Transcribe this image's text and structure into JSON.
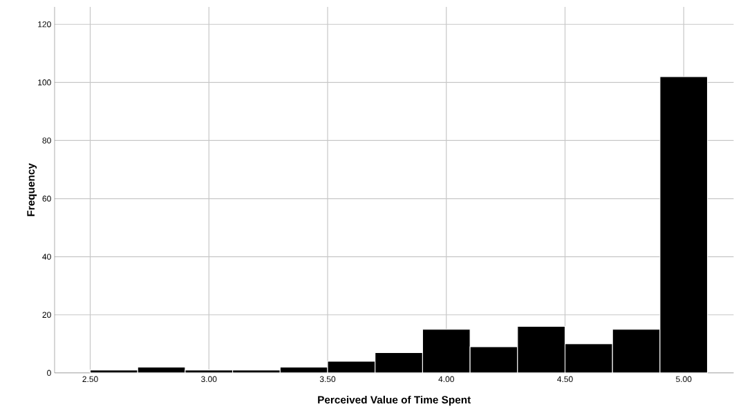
{
  "chart_data": {
    "type": "histogram",
    "xlabel": "Perceived Value of Time Spent",
    "ylabel": "Frequency",
    "bins": [
      2.5,
      2.7,
      2.9,
      3.1,
      3.3,
      3.5,
      3.7,
      3.9,
      4.1,
      4.3,
      4.5,
      4.7,
      4.9,
      5.1
    ],
    "values": [
      1,
      2,
      1,
      1,
      2,
      4,
      7,
      15,
      9,
      16,
      10,
      15,
      102
    ],
    "color": "#000000",
    "xlim": [
      2.35,
      5.21
    ],
    "ylim": [
      0,
      126
    ],
    "xticks": [
      {
        "value": 2.5,
        "label": "2.50"
      },
      {
        "value": 3.0,
        "label": "3.00"
      },
      {
        "value": 3.5,
        "label": "3.50"
      },
      {
        "value": 4.0,
        "label": "4.00"
      },
      {
        "value": 4.5,
        "label": "4.50"
      },
      {
        "value": 5.0,
        "label": "5.00"
      }
    ],
    "yticks": [
      0,
      20,
      40,
      60,
      80,
      100,
      120
    ],
    "grid": true
  }
}
